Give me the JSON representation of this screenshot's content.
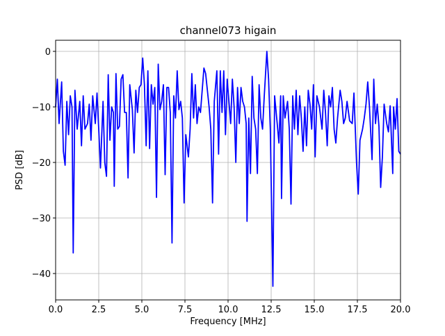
{
  "chart_data": {
    "type": "line",
    "title": "channel073 higain",
    "xlabel": "Frequency [MHz]",
    "ylabel": "PSD [dB]",
    "xlim": [
      0,
      20
    ],
    "ylim": [
      -44.75,
      2
    ],
    "grid": true,
    "xticks": [
      {
        "value": 0,
        "label": "0.0"
      },
      {
        "value": 2.5,
        "label": "2.5"
      },
      {
        "value": 5,
        "label": "5.0"
      },
      {
        "value": 7.5,
        "label": "7.5"
      },
      {
        "value": 10,
        "label": "10.0"
      },
      {
        "value": 12.5,
        "label": "12.5"
      },
      {
        "value": 15,
        "label": "15.0"
      },
      {
        "value": 17.5,
        "label": "17.5"
      },
      {
        "value": 20,
        "label": "20.0"
      }
    ],
    "yticks": [
      {
        "value": -40,
        "label": "−40"
      },
      {
        "value": -30,
        "label": "−30"
      },
      {
        "value": -20,
        "label": "−20"
      },
      {
        "value": -10,
        "label": "−10"
      },
      0
    ],
    "x": [
      0.0,
      0.1,
      0.2,
      0.35,
      0.45,
      0.55,
      0.65,
      0.75,
      0.85,
      0.95,
      1.02,
      1.12,
      1.25,
      1.4,
      1.5,
      1.6,
      1.7,
      1.85,
      1.95,
      2.05,
      2.15,
      2.3,
      2.4,
      2.5,
      2.6,
      2.75,
      2.85,
      2.95,
      3.05,
      3.15,
      3.25,
      3.35,
      3.4,
      3.5,
      3.6,
      3.7,
      3.8,
      3.9,
      4.0,
      4.1,
      4.2,
      4.3,
      4.45,
      4.55,
      4.65,
      4.75,
      4.85,
      4.95,
      5.05,
      5.15,
      5.25,
      5.35,
      5.45,
      5.55,
      5.65,
      5.75,
      5.85,
      5.95,
      6.05,
      6.15,
      6.25,
      6.35,
      6.45,
      6.55,
      6.65,
      6.75,
      6.85,
      6.95,
      7.05,
      7.15,
      7.25,
      7.35,
      7.45,
      7.55,
      7.7,
      7.8,
      7.9,
      8.0,
      8.1,
      8.2,
      8.3,
      8.4,
      8.5,
      8.6,
      8.7,
      8.8,
      8.9,
      9.0,
      9.1,
      9.2,
      9.35,
      9.45,
      9.55,
      9.65,
      9.75,
      9.85,
      9.95,
      10.05,
      10.15,
      10.25,
      10.35,
      10.45,
      10.55,
      10.65,
      10.75,
      10.85,
      10.95,
      11.05,
      11.1,
      11.2,
      11.3,
      11.4,
      11.5,
      11.6,
      11.7,
      11.8,
      11.9,
      12.0,
      12.1,
      12.25,
      12.35,
      12.45,
      12.6,
      12.7,
      12.85,
      12.95,
      13.05,
      13.1,
      13.2,
      13.3,
      13.45,
      13.55,
      13.65,
      13.75,
      13.85,
      13.95,
      14.05,
      14.15,
      14.25,
      14.35,
      14.45,
      14.55,
      14.65,
      14.75,
      14.85,
      14.95,
      15.05,
      15.15,
      15.3,
      15.45,
      15.55,
      15.65,
      15.75,
      15.85,
      15.95,
      16.05,
      16.15,
      16.25,
      16.35,
      16.5,
      16.6,
      16.7,
      16.8,
      16.9,
      17.05,
      17.2,
      17.3,
      17.45,
      17.55,
      17.65,
      17.8,
      17.9,
      18.0,
      18.1,
      18.2,
      18.35,
      18.45,
      18.55,
      18.65,
      18.75,
      18.85,
      18.95,
      19.05,
      19.2,
      19.3,
      19.4,
      19.55,
      19.6,
      19.7,
      19.8,
      19.9,
      20.0
    ],
    "series": [
      {
        "color": "#0000ff",
        "values": [
          -10,
          -5,
          -13,
          -5.5,
          -18,
          -20.5,
          -9,
          -15,
          -8,
          -10,
          -36.3,
          -7,
          -14,
          -9,
          -17,
          -8,
          -14,
          -13,
          -9.5,
          -16,
          -8,
          -13,
          -7.5,
          -14,
          -21,
          -9,
          -20,
          -22.5,
          -4.2,
          -16,
          -10,
          -11,
          -24.3,
          -4,
          -14,
          -13.5,
          -5,
          -4.2,
          -11,
          -11,
          -22.8,
          -6,
          -10.5,
          -18.3,
          -7,
          -11,
          -6.5,
          -6,
          -1.2,
          -6,
          -17,
          -3.5,
          -17.5,
          -6,
          -9.5,
          -6.5,
          -26.3,
          -2.3,
          -10.5,
          -9,
          -6,
          -22.2,
          -6.5,
          -6.5,
          -11,
          -34.5,
          -8,
          -12,
          -3.5,
          -10.5,
          -9,
          -12,
          -27.3,
          -15,
          -19,
          -14,
          -4,
          -12,
          -6,
          -13,
          -10,
          -11,
          -7,
          -3,
          -4,
          -7,
          -10,
          -14,
          -27.3,
          -9,
          -3.5,
          -18.5,
          -3.5,
          -11,
          -3.5,
          -15,
          -5,
          -9,
          -13,
          -5,
          -10,
          -20,
          -6.5,
          -13,
          -6.5,
          -9,
          -10,
          -13,
          -30.6,
          -12,
          -22,
          -4.5,
          -12,
          -14,
          -22,
          -6,
          -12,
          -14,
          -8,
          0,
          -5,
          -14,
          -42.3,
          -8,
          -13,
          -16.5,
          -8,
          -26.5,
          -8,
          -12,
          -9,
          -14,
          -27.5,
          -8,
          -14,
          -7,
          -15,
          -8,
          -12,
          -18,
          -10,
          -17,
          -7,
          -9.5,
          -14,
          -6,
          -19,
          -8,
          -10,
          -14,
          -7,
          -11,
          -17,
          -8,
          -10,
          -6.5,
          -14,
          -16.5,
          -12,
          -7,
          -9,
          -13,
          -12,
          -9,
          -12.5,
          -13,
          -7.5,
          -20,
          -25.7,
          -16,
          -14,
          -12,
          -9.5,
          -5.5,
          -10,
          -19.5,
          -5,
          -13,
          -9.5,
          -13.5,
          -24.5,
          -19,
          -9.5,
          -13,
          -14.5,
          -9.8,
          -22,
          -10,
          -14,
          -8.5,
          -18,
          -18.5
        ]
      }
    ]
  }
}
